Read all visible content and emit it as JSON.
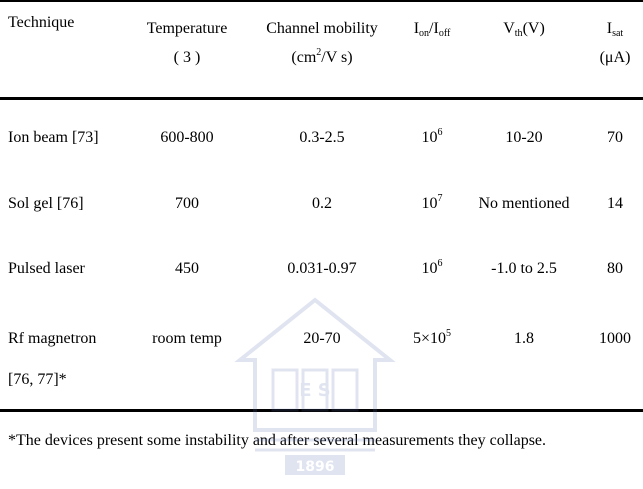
{
  "table": {
    "headers": {
      "technique": "Technique",
      "temperature_line1": "Temperature",
      "temperature_line2": "( 3 )",
      "mobility_line1": "Channel mobility",
      "mobility_pre": "(cm",
      "mobility_sup": "2",
      "mobility_post": "/V s)",
      "ion_main1": "I",
      "ion_sub1": "on",
      "ion_slash": "/I",
      "ion_sub2": "off",
      "vth_main": "V",
      "vth_sub": "th",
      "vth_unit": "(V)",
      "isat_main": "I",
      "isat_sub": "sat",
      "isat_unit": "(μA)"
    },
    "rows": [
      {
        "technique": "Ion beam [73]",
        "technique2": "",
        "temperature": "600-800",
        "mobility": "0.3-2.5",
        "ion_base": "10",
        "ion_exp": "6",
        "vth": "10-20",
        "isat": "70"
      },
      {
        "technique": "Sol gel [76]",
        "technique2": "",
        "temperature": "700",
        "mobility": "0.2",
        "ion_base": "10",
        "ion_exp": "7",
        "vth": "No mentioned",
        "isat": "14"
      },
      {
        "technique": "Pulsed laser",
        "technique2": "",
        "temperature": "450",
        "mobility": "0.031-0.97",
        "ion_base": "10",
        "ion_exp": "6",
        "vth": "-1.0 to 2.5",
        "isat": "80"
      },
      {
        "technique": "Rf magnetron",
        "technique2": "[76, 77]*",
        "temperature": "room temp",
        "mobility": "20-70",
        "ion_base": "5×10",
        "ion_exp": "5",
        "vth": "1.8",
        "isat": "1000"
      }
    ]
  },
  "footnote": "*The devices present some instability and after several measurements they collapse.",
  "watermark": {
    "icon": "university-seal-icon",
    "text1": "E S",
    "text2": "1896"
  }
}
